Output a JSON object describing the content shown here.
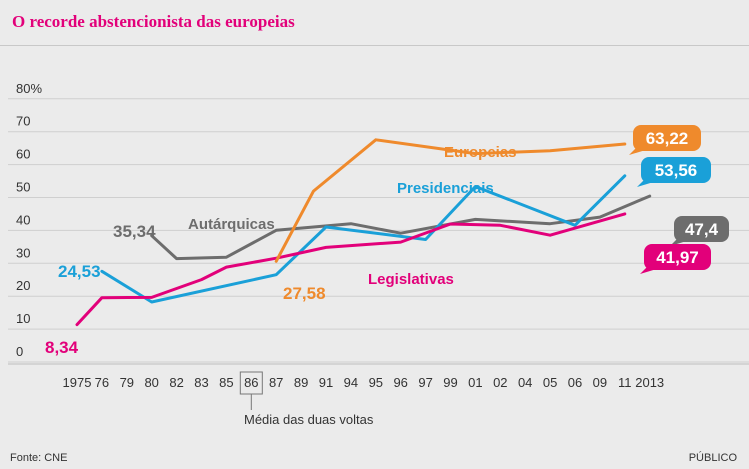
{
  "title": "O recorde abstencionista das europeias",
  "source": "Fonte: CNE",
  "publisher": "PÚBLICO",
  "note": "Média das duas voltas",
  "colors": {
    "Autárquicas": "#6d6d6d",
    "Europeias": "#ef8a2c",
    "Presidenciais": "#1aa0d8",
    "Legislativas": "#e2007a"
  },
  "chart_data": {
    "type": "line",
    "categories": [
      "1975",
      "76",
      "79",
      "80",
      "82",
      "83",
      "85",
      "86",
      "87",
      "89",
      "91",
      "94",
      "95",
      "96",
      "97",
      "99",
      "01",
      "02",
      "04",
      "05",
      "06",
      "09",
      "11",
      "2013"
    ],
    "y_ticks": [
      "80%",
      "70",
      "60",
      "50",
      "40",
      "30",
      "20",
      "10",
      "0"
    ],
    "ylim": [
      0,
      80
    ],
    "boxed_category": "86",
    "grid": true,
    "series": [
      {
        "name": "Legislativas",
        "points": [
          [
            0,
            8.34
          ],
          [
            1,
            16.5
          ],
          [
            3,
            16.6
          ],
          [
            5,
            22
          ],
          [
            6,
            25.8
          ],
          [
            8,
            28.5
          ],
          [
            10,
            31.8
          ],
          [
            13,
            33.4
          ],
          [
            15,
            38.9
          ],
          [
            17,
            38.5
          ],
          [
            19,
            35.5
          ],
          [
            22,
            41.97
          ]
        ],
        "end_label": "41,97",
        "start_label": "8,34"
      },
      {
        "name": "Presidenciais",
        "points": [
          [
            1,
            24.53
          ],
          [
            3,
            15.2
          ],
          [
            8,
            23.5
          ],
          [
            10,
            38
          ],
          [
            14,
            34.2
          ],
          [
            16,
            50.3
          ],
          [
            20,
            38.5
          ],
          [
            22,
            53.56
          ]
        ],
        "end_label": "53,56",
        "start_label": "24,53"
      },
      {
        "name": "Autárquicas",
        "points": [
          [
            3,
            35.34
          ],
          [
            4,
            28.4
          ],
          [
            6,
            28.8
          ],
          [
            8,
            37
          ],
          [
            11,
            39
          ],
          [
            13,
            36.1
          ],
          [
            16,
            40.3
          ],
          [
            19,
            39
          ],
          [
            21,
            41
          ],
          [
            23,
            47.4
          ]
        ],
        "end_label": "47,4",
        "start_label": "35,34"
      },
      {
        "name": "Europeias",
        "points": [
          [
            8,
            27.58
          ],
          [
            9.5,
            48.9
          ],
          [
            12,
            64.5
          ],
          [
            16,
            60.3
          ],
          [
            19,
            61.2
          ],
          [
            22,
            63.22
          ]
        ],
        "end_label": "63,22",
        "start_label": "27,58"
      }
    ]
  }
}
